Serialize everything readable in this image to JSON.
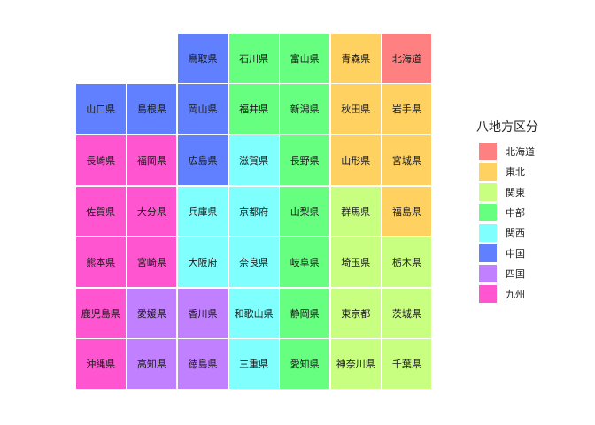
{
  "legend": {
    "title": "八地方区分",
    "items": [
      {
        "label": "北海道",
        "color": "#FF8080"
      },
      {
        "label": "東北",
        "color": "#FFD160"
      },
      {
        "label": "関東",
        "color": "#C8FF80"
      },
      {
        "label": "中部",
        "color": "#66FF80"
      },
      {
        "label": "関西",
        "color": "#80FFFF"
      },
      {
        "label": "中国",
        "color": "#6080FF"
      },
      {
        "label": "四国",
        "color": "#C080FF"
      },
      {
        "label": "九州",
        "color": "#FF55D0"
      }
    ]
  },
  "tiles": [
    {
      "name": "鳥取県",
      "region": 5,
      "row": 0,
      "col": 2
    },
    {
      "name": "石川県",
      "region": 3,
      "row": 0,
      "col": 3
    },
    {
      "name": "富山県",
      "region": 3,
      "row": 0,
      "col": 4
    },
    {
      "name": "青森県",
      "region": 1,
      "row": 0,
      "col": 5
    },
    {
      "name": "北海道",
      "region": 0,
      "row": 0,
      "col": 6
    },
    {
      "name": "山口県",
      "region": 5,
      "row": 1,
      "col": 0
    },
    {
      "name": "島根県",
      "region": 5,
      "row": 1,
      "col": 1
    },
    {
      "name": "岡山県",
      "region": 5,
      "row": 1,
      "col": 2
    },
    {
      "name": "福井県",
      "region": 3,
      "row": 1,
      "col": 3
    },
    {
      "name": "新潟県",
      "region": 3,
      "row": 1,
      "col": 4
    },
    {
      "name": "秋田県",
      "region": 1,
      "row": 1,
      "col": 5
    },
    {
      "name": "岩手県",
      "region": 1,
      "row": 1,
      "col": 6
    },
    {
      "name": "長崎県",
      "region": 7,
      "row": 2,
      "col": 0
    },
    {
      "name": "福岡県",
      "region": 7,
      "row": 2,
      "col": 1
    },
    {
      "name": "広島県",
      "region": 5,
      "row": 2,
      "col": 2
    },
    {
      "name": "滋賀県",
      "region": 4,
      "row": 2,
      "col": 3
    },
    {
      "name": "長野県",
      "region": 3,
      "row": 2,
      "col": 4
    },
    {
      "name": "山形県",
      "region": 1,
      "row": 2,
      "col": 5
    },
    {
      "name": "宮城県",
      "region": 1,
      "row": 2,
      "col": 6
    },
    {
      "name": "佐賀県",
      "region": 7,
      "row": 3,
      "col": 0
    },
    {
      "name": "大分県",
      "region": 7,
      "row": 3,
      "col": 1
    },
    {
      "name": "兵庫県",
      "region": 4,
      "row": 3,
      "col": 2
    },
    {
      "name": "京都府",
      "region": 4,
      "row": 3,
      "col": 3
    },
    {
      "name": "山梨県",
      "region": 3,
      "row": 3,
      "col": 4
    },
    {
      "name": "群馬県",
      "region": 2,
      "row": 3,
      "col": 5
    },
    {
      "name": "福島県",
      "region": 1,
      "row": 3,
      "col": 6
    },
    {
      "name": "熊本県",
      "region": 7,
      "row": 4,
      "col": 0
    },
    {
      "name": "宮崎県",
      "region": 7,
      "row": 4,
      "col": 1
    },
    {
      "name": "大阪府",
      "region": 4,
      "row": 4,
      "col": 2
    },
    {
      "name": "奈良県",
      "region": 4,
      "row": 4,
      "col": 3
    },
    {
      "name": "岐阜県",
      "region": 3,
      "row": 4,
      "col": 4
    },
    {
      "name": "埼玉県",
      "region": 2,
      "row": 4,
      "col": 5
    },
    {
      "name": "栃木県",
      "region": 2,
      "row": 4,
      "col": 6
    },
    {
      "name": "鹿児島県",
      "region": 7,
      "row": 5,
      "col": 0
    },
    {
      "name": "愛媛県",
      "region": 6,
      "row": 5,
      "col": 1
    },
    {
      "name": "香川県",
      "region": 6,
      "row": 5,
      "col": 2
    },
    {
      "name": "和歌山県",
      "region": 4,
      "row": 5,
      "col": 3
    },
    {
      "name": "静岡県",
      "region": 3,
      "row": 5,
      "col": 4
    },
    {
      "name": "東京都",
      "region": 2,
      "row": 5,
      "col": 5
    },
    {
      "name": "茨城県",
      "region": 2,
      "row": 5,
      "col": 6
    },
    {
      "name": "沖縄県",
      "region": 7,
      "row": 6,
      "col": 0
    },
    {
      "name": "高知県",
      "region": 6,
      "row": 6,
      "col": 1
    },
    {
      "name": "徳島県",
      "region": 6,
      "row": 6,
      "col": 2
    },
    {
      "name": "三重県",
      "region": 4,
      "row": 6,
      "col": 3
    },
    {
      "name": "愛知県",
      "region": 3,
      "row": 6,
      "col": 4
    },
    {
      "name": "神奈川県",
      "region": 2,
      "row": 6,
      "col": 5
    },
    {
      "name": "千葉県",
      "region": 2,
      "row": 6,
      "col": 6
    }
  ]
}
